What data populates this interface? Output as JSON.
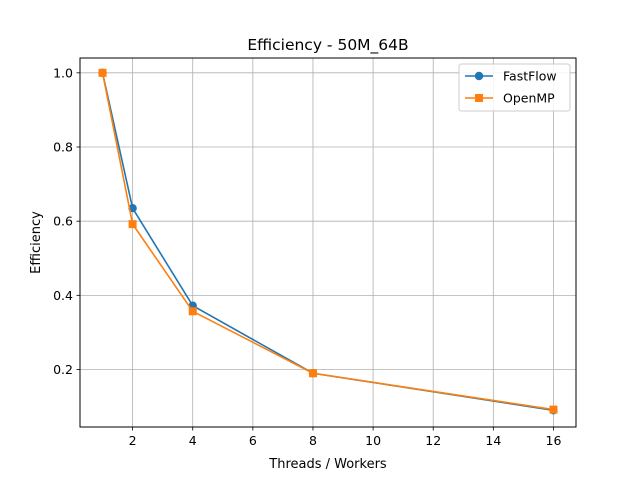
{
  "chart_data": {
    "type": "line",
    "title": "Efficiency - 50M_64B",
    "xlabel": "Threads / Workers",
    "ylabel": "Efficiency",
    "x": [
      1,
      2,
      4,
      8,
      16
    ],
    "xlim": [
      0.25,
      16.75
    ],
    "ylim": [
      0.045,
      1.04
    ],
    "xticks": [
      2,
      4,
      6,
      8,
      10,
      12,
      14,
      16
    ],
    "yticks": [
      0.2,
      0.4,
      0.6,
      0.8,
      1.0
    ],
    "xtick_labels": [
      "2",
      "4",
      "6",
      "8",
      "10",
      "12",
      "14",
      "16"
    ],
    "ytick_labels": [
      "0.2",
      "0.4",
      "0.6",
      "0.8",
      "1.0"
    ],
    "grid": true,
    "legend_position": "top-right",
    "series": [
      {
        "name": "FastFlow",
        "values": [
          1.0,
          0.635,
          0.372,
          0.19,
          0.09
        ],
        "color": "#1f77b4",
        "marker": "circle"
      },
      {
        "name": "OpenMP",
        "values": [
          1.0,
          0.592,
          0.357,
          0.19,
          0.092
        ],
        "color": "#ff7f0e",
        "marker": "square"
      }
    ]
  }
}
